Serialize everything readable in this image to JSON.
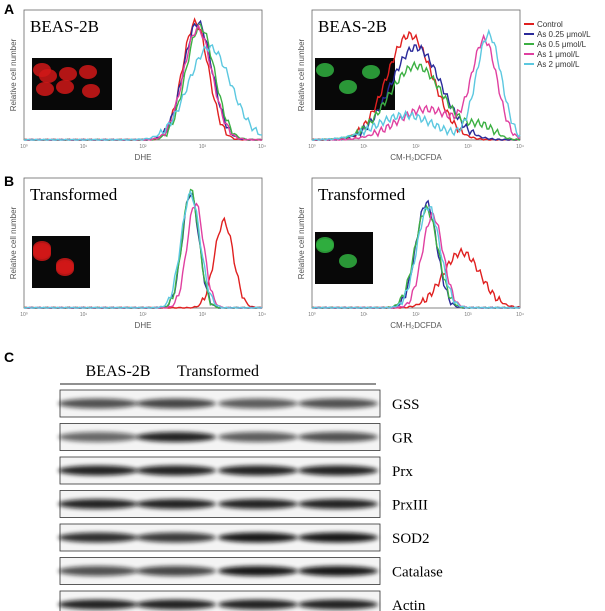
{
  "panels": [
    {
      "label": "A",
      "plots": [
        {
          "cell_line": "BEAS-2B",
          "y_label": "Relative cell number",
          "x_label": "DHE",
          "x_ticks": [
            "10⁰",
            "10¹",
            "10²",
            "10³",
            "10⁴"
          ]
        },
        {
          "cell_line": "BEAS-2B",
          "y_label": "Relative cell number",
          "x_label": "CM-H₂DCFDA",
          "x_ticks": [
            "10⁰",
            "10¹",
            "10²",
            "10³",
            "10⁴"
          ]
        }
      ]
    },
    {
      "label": "B",
      "plots": [
        {
          "cell_line": "Transformed",
          "y_label": "Relative cell number",
          "x_label": "DHE",
          "x_ticks": [
            "10⁰",
            "10¹",
            "10²",
            "10³",
            "10⁴"
          ]
        },
        {
          "cell_line": "Transformed",
          "y_label": "Relative cell number",
          "x_label": "CM-H₂DCFDA",
          "x_ticks": [
            "10⁰",
            "10¹",
            "10²",
            "10³",
            "10⁴"
          ]
        }
      ]
    }
  ],
  "legend": [
    {
      "name": "Control",
      "color": "#e02020"
    },
    {
      "name": "As 0.25 μmol/L",
      "color": "#2a2a9a"
    },
    {
      "name": "As 0.5 μmol/L",
      "color": "#3cb043"
    },
    {
      "name": "As 1 μmol/L",
      "color": "#e040a0"
    },
    {
      "name": "As 2 μmol/L",
      "color": "#5cc8e0"
    }
  ],
  "blot": {
    "label": "C",
    "groups": [
      "BEAS-2B",
      "Transformed"
    ],
    "rows": [
      "GSS",
      "GR",
      "Prx",
      "PrxIII",
      "SOD2",
      "Catalase",
      "Actin"
    ]
  }
}
